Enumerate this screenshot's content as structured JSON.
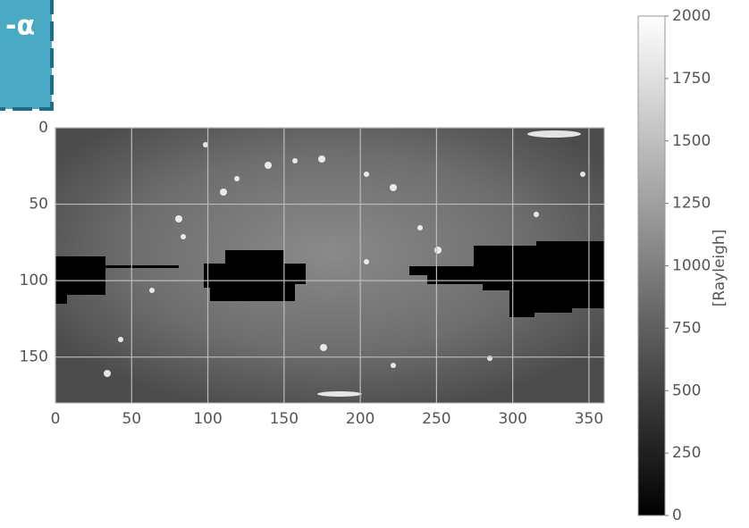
{
  "badge_text": "-α",
  "chart_data": {
    "type": "heatmap",
    "xlim": [
      0,
      360
    ],
    "xticks": [
      0,
      50,
      100,
      150,
      200,
      250,
      300,
      350
    ],
    "ylim": [
      180,
      0
    ],
    "yticks": [
      0,
      50,
      100,
      150
    ],
    "grid": true,
    "colormap": "gray",
    "colorbar": {
      "label": "[Rayleigh]",
      "lim": [
        0,
        2000
      ],
      "ticks": [
        0,
        250,
        500,
        750,
        1000,
        1250,
        1500,
        1750,
        2000
      ]
    }
  }
}
